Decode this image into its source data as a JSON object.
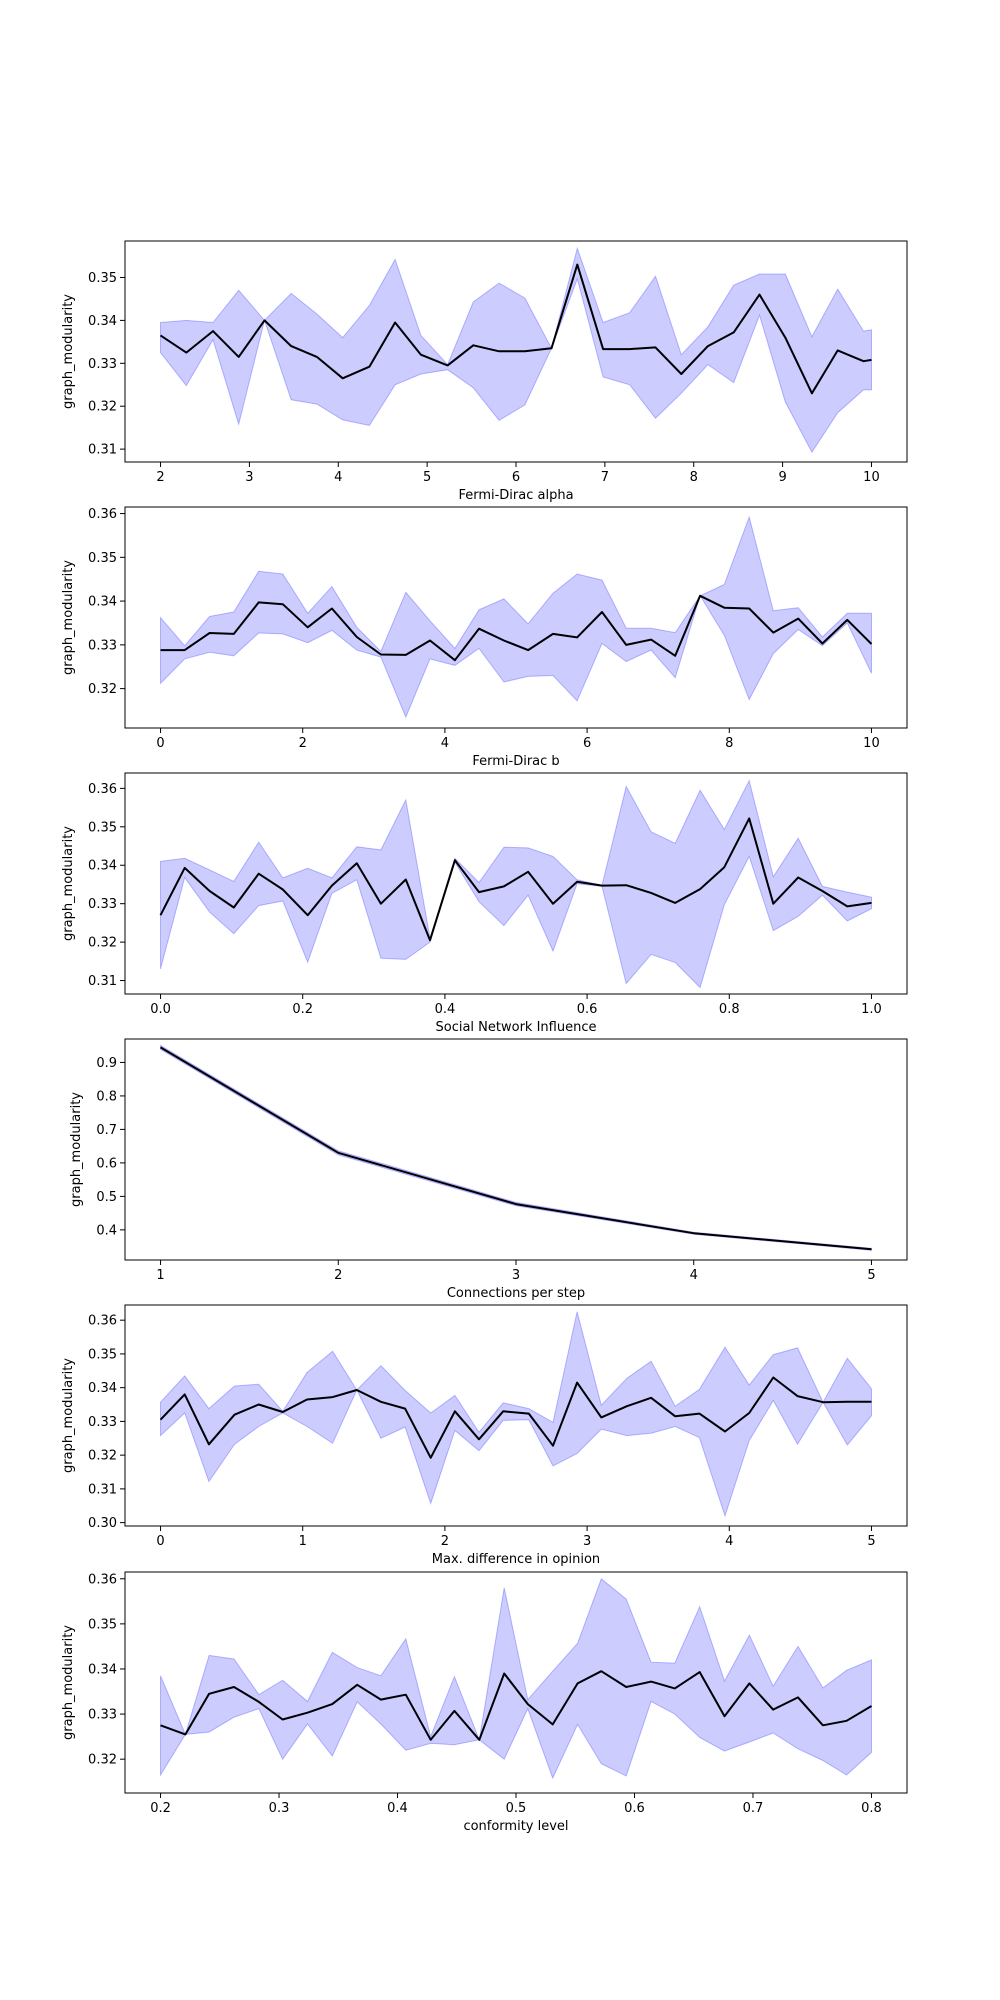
{
  "colors": {
    "band": "#0000ff",
    "line": "#000000",
    "axes": "#000000",
    "background": "#ffffff"
  },
  "chart_data": [
    {
      "type": "line",
      "title": "",
      "xlabel": "Fermi-Dirac alpha",
      "ylabel": "graph_modularity",
      "xlim": [
        1.6,
        10.4
      ],
      "ylim": [
        0.307,
        0.3585
      ],
      "xticks": [
        2,
        3,
        4,
        5,
        6,
        7,
        8,
        9,
        10
      ],
      "xtick_labels": [
        "2",
        "3",
        "4",
        "5",
        "6",
        "7",
        "8",
        "9",
        "10"
      ],
      "yticks": [
        0.31,
        0.32,
        0.33,
        0.34,
        0.35
      ],
      "ytick_labels": [
        "0.31",
        "0.32",
        "0.33",
        "0.34",
        "0.35"
      ],
      "x": [
        2.0,
        2.29,
        2.59,
        2.88,
        3.17,
        3.47,
        3.76,
        4.05,
        4.35,
        4.64,
        4.93,
        5.23,
        5.52,
        5.81,
        6.1,
        6.4,
        6.69,
        6.98,
        7.28,
        7.57,
        7.86,
        8.16,
        8.45,
        8.74,
        9.03,
        9.33,
        9.62,
        9.91,
        10.0
      ],
      "mean": [
        0.3365,
        0.3325,
        0.3375,
        0.3315,
        0.34,
        0.334,
        0.3315,
        0.3265,
        0.3292,
        0.3395,
        0.332,
        0.3295,
        0.3342,
        0.3328,
        0.3328,
        0.3335,
        0.353,
        0.3333,
        0.3333,
        0.3337,
        0.3275,
        0.334,
        0.3372,
        0.346,
        0.336,
        0.323,
        0.333,
        0.3305,
        0.3308
      ],
      "upper": [
        0.3395,
        0.34,
        0.3395,
        0.347,
        0.34,
        0.3463,
        0.3415,
        0.336,
        0.3435,
        0.3542,
        0.3365,
        0.3297,
        0.3443,
        0.3487,
        0.3452,
        0.3335,
        0.3568,
        0.3395,
        0.3418,
        0.3503,
        0.332,
        0.3385,
        0.3482,
        0.3508,
        0.3508,
        0.3362,
        0.3473,
        0.3375,
        0.3378
      ],
      "lower": [
        0.3325,
        0.3248,
        0.3355,
        0.3158,
        0.34,
        0.3215,
        0.3205,
        0.3168,
        0.3155,
        0.325,
        0.3275,
        0.3285,
        0.3243,
        0.3167,
        0.3203,
        0.3335,
        0.3497,
        0.3268,
        0.325,
        0.3172,
        0.323,
        0.3297,
        0.3255,
        0.3412,
        0.321,
        0.3093,
        0.3185,
        0.3238,
        0.3238
      ]
    },
    {
      "type": "line",
      "title": "",
      "xlabel": "Fermi-Dirac b",
      "ylabel": "graph_modularity",
      "xlim": [
        -0.5,
        10.5
      ],
      "ylim": [
        0.311,
        0.3615
      ],
      "xticks": [
        0,
        2,
        4,
        6,
        8,
        10
      ],
      "xtick_labels": [
        "0",
        "2",
        "4",
        "6",
        "8",
        "10"
      ],
      "yticks": [
        0.32,
        0.33,
        0.34,
        0.35,
        0.36
      ],
      "ytick_labels": [
        "0.32",
        "0.33",
        "0.34",
        "0.35",
        "0.36"
      ],
      "x": [
        0.0,
        0.34,
        0.69,
        1.03,
        1.38,
        1.72,
        2.07,
        2.41,
        2.76,
        3.1,
        3.45,
        3.79,
        4.14,
        4.48,
        4.83,
        5.17,
        5.52,
        5.86,
        6.21,
        6.55,
        6.9,
        7.24,
        7.59,
        7.93,
        8.28,
        8.62,
        8.97,
        9.31,
        9.66,
        10.0
      ],
      "mean": [
        0.3288,
        0.3288,
        0.3327,
        0.3325,
        0.3397,
        0.3393,
        0.334,
        0.3383,
        0.3318,
        0.3278,
        0.3277,
        0.331,
        0.3265,
        0.3337,
        0.331,
        0.3288,
        0.3325,
        0.3317,
        0.3375,
        0.33,
        0.3312,
        0.3275,
        0.3412,
        0.3385,
        0.3383,
        0.3328,
        0.336,
        0.3303,
        0.3357,
        0.3302
      ],
      "upper": [
        0.3362,
        0.3298,
        0.3365,
        0.3375,
        0.3468,
        0.3462,
        0.3372,
        0.3433,
        0.334,
        0.3285,
        0.342,
        0.3355,
        0.3292,
        0.338,
        0.3405,
        0.3348,
        0.3418,
        0.3462,
        0.3448,
        0.3338,
        0.3338,
        0.3328,
        0.3412,
        0.3438,
        0.3592,
        0.3378,
        0.3385,
        0.3318,
        0.3372,
        0.3372
      ],
      "lower": [
        0.3212,
        0.3268,
        0.3283,
        0.3275,
        0.3327,
        0.3325,
        0.3305,
        0.3333,
        0.3288,
        0.3272,
        0.3135,
        0.3268,
        0.3253,
        0.3292,
        0.3215,
        0.3228,
        0.323,
        0.3172,
        0.3303,
        0.3262,
        0.3288,
        0.3225,
        0.3412,
        0.3322,
        0.3175,
        0.328,
        0.3335,
        0.3298,
        0.335,
        0.3235
      ]
    },
    {
      "type": "line",
      "title": "",
      "xlabel": "Social Network Influence",
      "ylabel": "graph_modularity",
      "xlim": [
        -0.05,
        1.05
      ],
      "ylim": [
        0.3065,
        0.364
      ],
      "xticks": [
        0.0,
        0.2,
        0.4,
        0.6,
        0.8,
        1.0
      ],
      "xtick_labels": [
        "0.0",
        "0.2",
        "0.4",
        "0.6",
        "0.8",
        "1.0"
      ],
      "yticks": [
        0.31,
        0.32,
        0.33,
        0.34,
        0.35,
        0.36
      ],
      "ytick_labels": [
        "0.31",
        "0.32",
        "0.33",
        "0.34",
        "0.35",
        "0.36"
      ],
      "x": [
        0.0,
        0.034,
        0.069,
        0.103,
        0.138,
        0.172,
        0.207,
        0.241,
        0.276,
        0.31,
        0.345,
        0.379,
        0.414,
        0.448,
        0.483,
        0.517,
        0.552,
        0.586,
        0.621,
        0.655,
        0.69,
        0.724,
        0.759,
        0.793,
        0.828,
        0.862,
        0.897,
        0.931,
        0.966,
        1.0
      ],
      "mean": [
        0.327,
        0.3393,
        0.3333,
        0.329,
        0.3378,
        0.3337,
        0.327,
        0.3347,
        0.3405,
        0.33,
        0.3363,
        0.3205,
        0.3413,
        0.333,
        0.3345,
        0.3383,
        0.33,
        0.3357,
        0.3347,
        0.3348,
        0.3328,
        0.3302,
        0.3338,
        0.3395,
        0.3522,
        0.33,
        0.3368,
        0.3333,
        0.3293,
        0.3302
      ],
      "upper": [
        0.341,
        0.3418,
        0.3388,
        0.3358,
        0.346,
        0.3367,
        0.3392,
        0.3367,
        0.3448,
        0.344,
        0.357,
        0.321,
        0.3418,
        0.3355,
        0.3447,
        0.3445,
        0.3423,
        0.3362,
        0.3348,
        0.3605,
        0.3487,
        0.3457,
        0.3595,
        0.3493,
        0.362,
        0.337,
        0.347,
        0.3345,
        0.333,
        0.3317
      ],
      "lower": [
        0.313,
        0.3368,
        0.3278,
        0.3222,
        0.3295,
        0.3307,
        0.3148,
        0.3327,
        0.3362,
        0.3158,
        0.3155,
        0.32,
        0.3408,
        0.3305,
        0.3243,
        0.3322,
        0.3177,
        0.3352,
        0.3345,
        0.3092,
        0.3168,
        0.3147,
        0.3082,
        0.3297,
        0.3423,
        0.323,
        0.3267,
        0.3322,
        0.3255,
        0.3287
      ]
    },
    {
      "type": "line",
      "title": "",
      "xlabel": "Connections per step",
      "ylabel": "graph_modularity",
      "xlim": [
        0.8,
        5.2
      ],
      "ylim": [
        0.31,
        0.97
      ],
      "xticks": [
        1,
        2,
        3,
        4,
        5
      ],
      "xtick_labels": [
        "1",
        "2",
        "3",
        "4",
        "5"
      ],
      "yticks": [
        0.4,
        0.5,
        0.6,
        0.7,
        0.8,
        0.9
      ],
      "ytick_labels": [
        "0.4",
        "0.5",
        "0.6",
        "0.7",
        "0.8",
        "0.9"
      ],
      "x": [
        1,
        2,
        3,
        4,
        5
      ],
      "mean": [
        0.945,
        0.63,
        0.477,
        0.39,
        0.342
      ],
      "upper": [
        0.951,
        0.636,
        0.482,
        0.393,
        0.345
      ],
      "lower": [
        0.939,
        0.624,
        0.472,
        0.387,
        0.339
      ]
    },
    {
      "type": "line",
      "title": "",
      "xlabel": "Max. difference in opinion",
      "ylabel": "graph_modularity",
      "xlim": [
        -0.25,
        5.25
      ],
      "ylim": [
        0.299,
        0.3645
      ],
      "xticks": [
        0,
        1,
        2,
        3,
        4,
        5
      ],
      "xtick_labels": [
        "0",
        "1",
        "2",
        "3",
        "4",
        "5"
      ],
      "yticks": [
        0.3,
        0.31,
        0.32,
        0.33,
        0.34,
        0.35,
        0.36
      ],
      "ytick_labels": [
        "0.30",
        "0.31",
        "0.32",
        "0.33",
        "0.34",
        "0.35",
        "0.36"
      ],
      "x": [
        0.0,
        0.17,
        0.34,
        0.52,
        0.69,
        0.86,
        1.03,
        1.21,
        1.38,
        1.55,
        1.72,
        1.9,
        2.07,
        2.24,
        2.41,
        2.59,
        2.76,
        2.93,
        3.1,
        3.28,
        3.45,
        3.62,
        3.79,
        3.97,
        4.14,
        4.31,
        4.48,
        4.66,
        4.83,
        5.0
      ],
      "mean": [
        0.3305,
        0.338,
        0.3232,
        0.332,
        0.335,
        0.3328,
        0.3365,
        0.3372,
        0.3393,
        0.3358,
        0.3338,
        0.3192,
        0.333,
        0.3247,
        0.333,
        0.3323,
        0.3228,
        0.3415,
        0.3312,
        0.3345,
        0.337,
        0.3315,
        0.3323,
        0.327,
        0.3325,
        0.343,
        0.3375,
        0.3357,
        0.3358,
        0.3358
      ],
      "upper": [
        0.3357,
        0.3435,
        0.3338,
        0.3405,
        0.341,
        0.333,
        0.3445,
        0.3508,
        0.3393,
        0.3465,
        0.3392,
        0.3325,
        0.3377,
        0.3268,
        0.3355,
        0.3338,
        0.3297,
        0.3625,
        0.3348,
        0.3428,
        0.3478,
        0.3345,
        0.3395,
        0.352,
        0.3408,
        0.3498,
        0.3518,
        0.3357,
        0.3487,
        0.3397
      ],
      "lower": [
        0.3258,
        0.3325,
        0.3122,
        0.3232,
        0.3285,
        0.3325,
        0.3285,
        0.3235,
        0.3393,
        0.325,
        0.3283,
        0.3057,
        0.3273,
        0.3213,
        0.3303,
        0.3305,
        0.3168,
        0.3205,
        0.3277,
        0.3258,
        0.3265,
        0.3285,
        0.3252,
        0.302,
        0.3243,
        0.3362,
        0.3232,
        0.3357,
        0.323,
        0.3317
      ]
    },
    {
      "type": "line",
      "title": "",
      "xlabel": "conformity level",
      "ylabel": "graph_modularity",
      "xlim": [
        0.17,
        0.83
      ],
      "ylim": [
        0.3125,
        0.3615
      ],
      "xticks": [
        0.2,
        0.3,
        0.4,
        0.5,
        0.6,
        0.7,
        0.8
      ],
      "xtick_labels": [
        "0.2",
        "0.3",
        "0.4",
        "0.5",
        "0.6",
        "0.7",
        "0.8"
      ],
      "yticks": [
        0.32,
        0.33,
        0.34,
        0.35,
        0.36
      ],
      "ytick_labels": [
        "0.32",
        "0.33",
        "0.34",
        "0.35",
        "0.36"
      ],
      "x": [
        0.2,
        0.221,
        0.241,
        0.262,
        0.283,
        0.303,
        0.324,
        0.345,
        0.366,
        0.386,
        0.407,
        0.428,
        0.448,
        0.469,
        0.49,
        0.51,
        0.531,
        0.552,
        0.572,
        0.593,
        0.614,
        0.634,
        0.655,
        0.676,
        0.697,
        0.717,
        0.738,
        0.759,
        0.779,
        0.8
      ],
      "mean": [
        0.3275,
        0.3255,
        0.3345,
        0.336,
        0.3327,
        0.3288,
        0.3303,
        0.3322,
        0.3365,
        0.3332,
        0.3343,
        0.3243,
        0.3307,
        0.3243,
        0.339,
        0.3322,
        0.3277,
        0.3368,
        0.3395,
        0.336,
        0.3372,
        0.3357,
        0.3393,
        0.3295,
        0.3368,
        0.331,
        0.3337,
        0.3275,
        0.3285,
        0.3318
      ],
      "upper": [
        0.3385,
        0.3255,
        0.343,
        0.3422,
        0.3343,
        0.3375,
        0.3328,
        0.3437,
        0.3403,
        0.3385,
        0.3467,
        0.325,
        0.3383,
        0.3243,
        0.358,
        0.3332,
        0.3395,
        0.3457,
        0.36,
        0.3555,
        0.3415,
        0.3413,
        0.3538,
        0.3373,
        0.3475,
        0.3362,
        0.345,
        0.3358,
        0.3397,
        0.342
      ],
      "lower": [
        0.3165,
        0.3255,
        0.326,
        0.3293,
        0.3312,
        0.32,
        0.3278,
        0.3207,
        0.3327,
        0.3278,
        0.322,
        0.3235,
        0.3232,
        0.3243,
        0.32,
        0.3312,
        0.3158,
        0.3277,
        0.319,
        0.3163,
        0.3328,
        0.33,
        0.3248,
        0.3218,
        0.3238,
        0.3258,
        0.3223,
        0.3197,
        0.3165,
        0.3215
      ]
    }
  ]
}
